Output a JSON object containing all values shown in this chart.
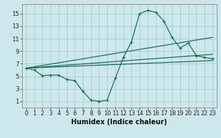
{
  "xlabel": "Humidex (Indice chaleur)",
  "bg_color": "#cce8ec",
  "grid_color": "#aacccc",
  "line_color": "#1a6b5a",
  "xlim": [
    -0.5,
    23.5
  ],
  "ylim": [
    0,
    16.5
  ],
  "xticks": [
    0,
    1,
    2,
    3,
    4,
    5,
    6,
    7,
    8,
    9,
    10,
    11,
    12,
    13,
    14,
    15,
    16,
    17,
    18,
    19,
    20,
    21,
    22,
    23
  ],
  "yticks": [
    1,
    3,
    5,
    7,
    9,
    11,
    13,
    15
  ],
  "curve_x": [
    0,
    1,
    2,
    3,
    4,
    5,
    6,
    7,
    8,
    9,
    10,
    11,
    12,
    13,
    14,
    15,
    16,
    17,
    18,
    19,
    20,
    21,
    22,
    23
  ],
  "curve_y": [
    6.3,
    6.0,
    5.1,
    5.2,
    5.2,
    4.5,
    4.3,
    2.6,
    1.2,
    1.0,
    1.2,
    4.7,
    8.0,
    10.5,
    15.0,
    15.5,
    15.2,
    13.8,
    11.2,
    9.5,
    10.3,
    8.3,
    8.0,
    7.8
  ],
  "line1_x": [
    0,
    23
  ],
  "line1_y": [
    6.3,
    7.5
  ],
  "line2_x": [
    0,
    23
  ],
  "line2_y": [
    6.3,
    8.5
  ],
  "line3_x": [
    0,
    23
  ],
  "line3_y": [
    6.3,
    11.2
  ],
  "tick_fontsize": 6,
  "xlabel_fontsize": 7
}
